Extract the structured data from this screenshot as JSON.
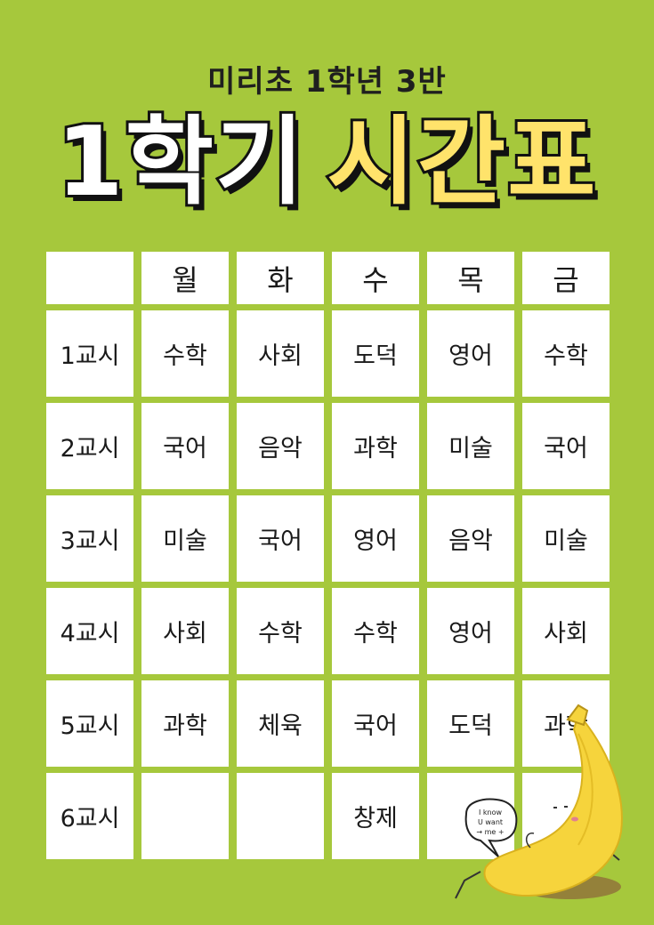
{
  "subtitle": "미리초 1학년 3반",
  "title": {
    "part1": "1학기",
    "part2": "시간표"
  },
  "timetable": {
    "header": [
      "",
      "월",
      "화",
      "수",
      "목",
      "금"
    ],
    "rows": [
      [
        "1교시",
        "수학",
        "사회",
        "도덕",
        "영어",
        "수학"
      ],
      [
        "2교시",
        "국어",
        "음악",
        "과학",
        "미술",
        "국어"
      ],
      [
        "3교시",
        "미술",
        "국어",
        "영어",
        "음악",
        "미술"
      ],
      [
        "4교시",
        "사회",
        "수학",
        "수학",
        "영어",
        "사회"
      ],
      [
        "5교시",
        "과학",
        "체육",
        "국어",
        "도덕",
        "과학"
      ],
      [
        "6교시",
        "",
        "",
        "창제",
        "",
        ""
      ]
    ]
  },
  "speech_bubble": [
    "I know",
    "U want",
    "→ me +"
  ],
  "colors": {
    "background": "#a6c83c",
    "title_yellow": "#ffe36b",
    "banana": "#f6d43c"
  }
}
